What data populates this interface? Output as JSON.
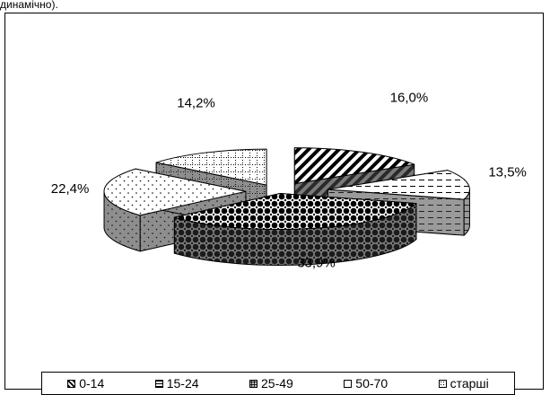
{
  "page": {
    "top_text": "динамічно)."
  },
  "chart_data": {
    "type": "pie",
    "title": "",
    "slices": [
      {
        "category": "0-14",
        "value": 16.0,
        "label": "16,0%"
      },
      {
        "category": "15-24",
        "value": 13.5,
        "label": "13,5%"
      },
      {
        "category": "25-49",
        "value": 33.9,
        "label": "33,9%"
      },
      {
        "category": "50-70",
        "value": 22.4,
        "label": "22,4%"
      },
      {
        "category": "старші",
        "value": 14.2,
        "label": "14,2%"
      }
    ],
    "legend": {
      "position": "bottom",
      "entries": [
        "0-14",
        "15-24",
        "25-49",
        "50-70",
        "старші"
      ]
    },
    "style": "3d-exploded"
  }
}
